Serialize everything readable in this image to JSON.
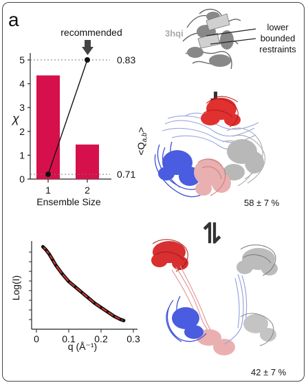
{
  "panel_label": "a",
  "pdb_label": "3hqi",
  "restraints_label": [
    "lower",
    "bounded",
    "restraints"
  ],
  "recommended_label": "recommended",
  "q_axis_label": "<Q",
  "q_axis_subscript": "a,b",
  "q_axis_close": ">",
  "population_top": "58 ± 7 %",
  "population_bottom": "42 ± 7 %",
  "equilibrium_symbol": "⇌",
  "colors": {
    "bar": "#d6104a",
    "red_domain": "#e03030",
    "blue_domain": "#3a4fd8",
    "lavender": "#9aa4e0",
    "salmon": "#e8a0a0",
    "gray": "#9a9a9a"
  },
  "chart_data": [
    {
      "type": "bar",
      "categories": [
        "1",
        "2"
      ],
      "values": [
        4.35,
        1.45
      ],
      "line_series": {
        "x": [
          "1",
          "2"
        ],
        "values": [
          0.2,
          5.0
        ]
      },
      "reference_lines": [
        {
          "y": 5.0,
          "label": "0.83"
        },
        {
          "y": 0.2,
          "label": "0.71"
        }
      ],
      "yticks": [
        "0",
        "1",
        "2",
        "3",
        "4",
        "5"
      ],
      "ylabel": "χ",
      "xlabel": "Ensemble Size",
      "ylim": [
        0,
        5.2
      ],
      "grid": false
    },
    {
      "type": "line",
      "xlabel": "q (Å⁻¹)",
      "ylabel": "Log(I)",
      "xticks": [
        "0",
        "0.1",
        "0.2",
        "0.3"
      ],
      "xlim": [
        0,
        0.3
      ],
      "x": [
        0.02,
        0.03,
        0.04,
        0.05,
        0.06,
        0.08,
        0.1,
        0.12,
        0.14,
        0.16,
        0.18,
        0.2,
        0.22,
        0.24,
        0.26,
        0.27
      ],
      "series": [
        {
          "values": [
            9.6,
            9.3,
            8.9,
            8.4,
            7.9,
            7.1,
            6.4,
            5.9,
            5.4,
            4.9,
            4.4,
            4.0,
            3.6,
            3.2,
            2.9,
            2.8
          ]
        }
      ]
    }
  ]
}
